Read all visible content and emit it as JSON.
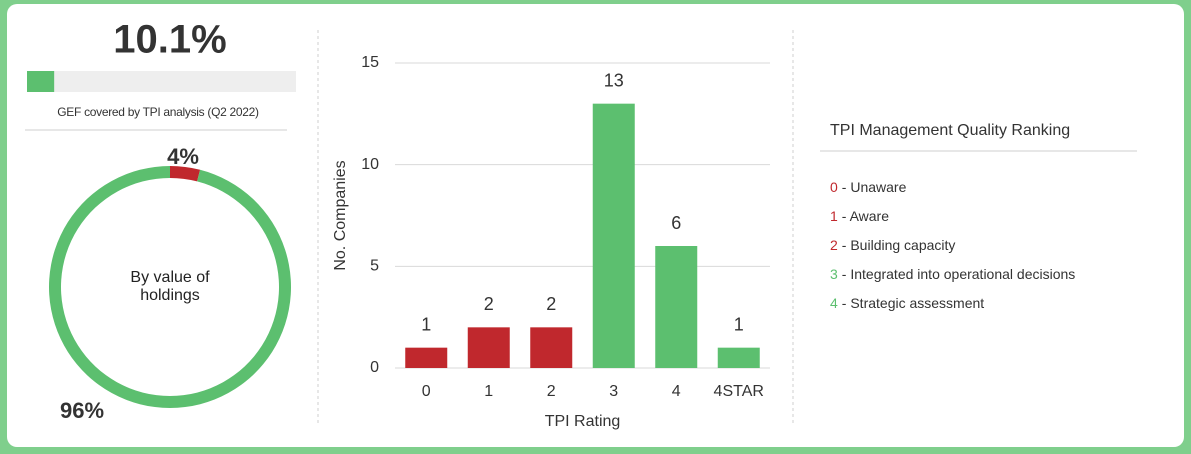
{
  "chart_data": [
    {
      "type": "progress",
      "value": 10.1,
      "value_label": "10.1%",
      "xlim": [
        0,
        100
      ],
      "color": "#5cbf6f",
      "track_color": "#eeeeee",
      "caption": "GEF covered by TPI analysis (Q2 2022)"
    },
    {
      "type": "pie",
      "center_label": "By value of holdings",
      "values": [
        4,
        96
      ],
      "value_labels": [
        "4%",
        "96%"
      ],
      "colors": [
        "#c0282d",
        "#5cbf6f"
      ]
    },
    {
      "type": "bar",
      "categories": [
        "0",
        "1",
        "2",
        "3",
        "4",
        "4STAR"
      ],
      "values": [
        1,
        2,
        2,
        13,
        6,
        1
      ],
      "colors": [
        "#c0282d",
        "#c0282d",
        "#c0282d",
        "#5cbf6f",
        "#5cbf6f",
        "#5cbf6f"
      ],
      "xlabel": "TPI Rating",
      "ylabel": "No. Companies",
      "ylim": [
        0,
        15
      ],
      "yticks": [
        0,
        5,
        10,
        15
      ],
      "grid": true
    }
  ],
  "legend_panel": {
    "title": "TPI Management Quality Ranking",
    "items": [
      {
        "code": "0",
        "text": "- Unaware",
        "color": "#c0282d"
      },
      {
        "code": "1",
        "text": "- Aware",
        "color": "#c0282d"
      },
      {
        "code": "2",
        "text": "- Building capacity",
        "color": "#c0282d"
      },
      {
        "code": "3",
        "text": "- Integrated into operational decisions",
        "color": "#5cbf6f"
      },
      {
        "code": "4",
        "text": "- Strategic assessment",
        "color": "#5cbf6f"
      }
    ]
  }
}
